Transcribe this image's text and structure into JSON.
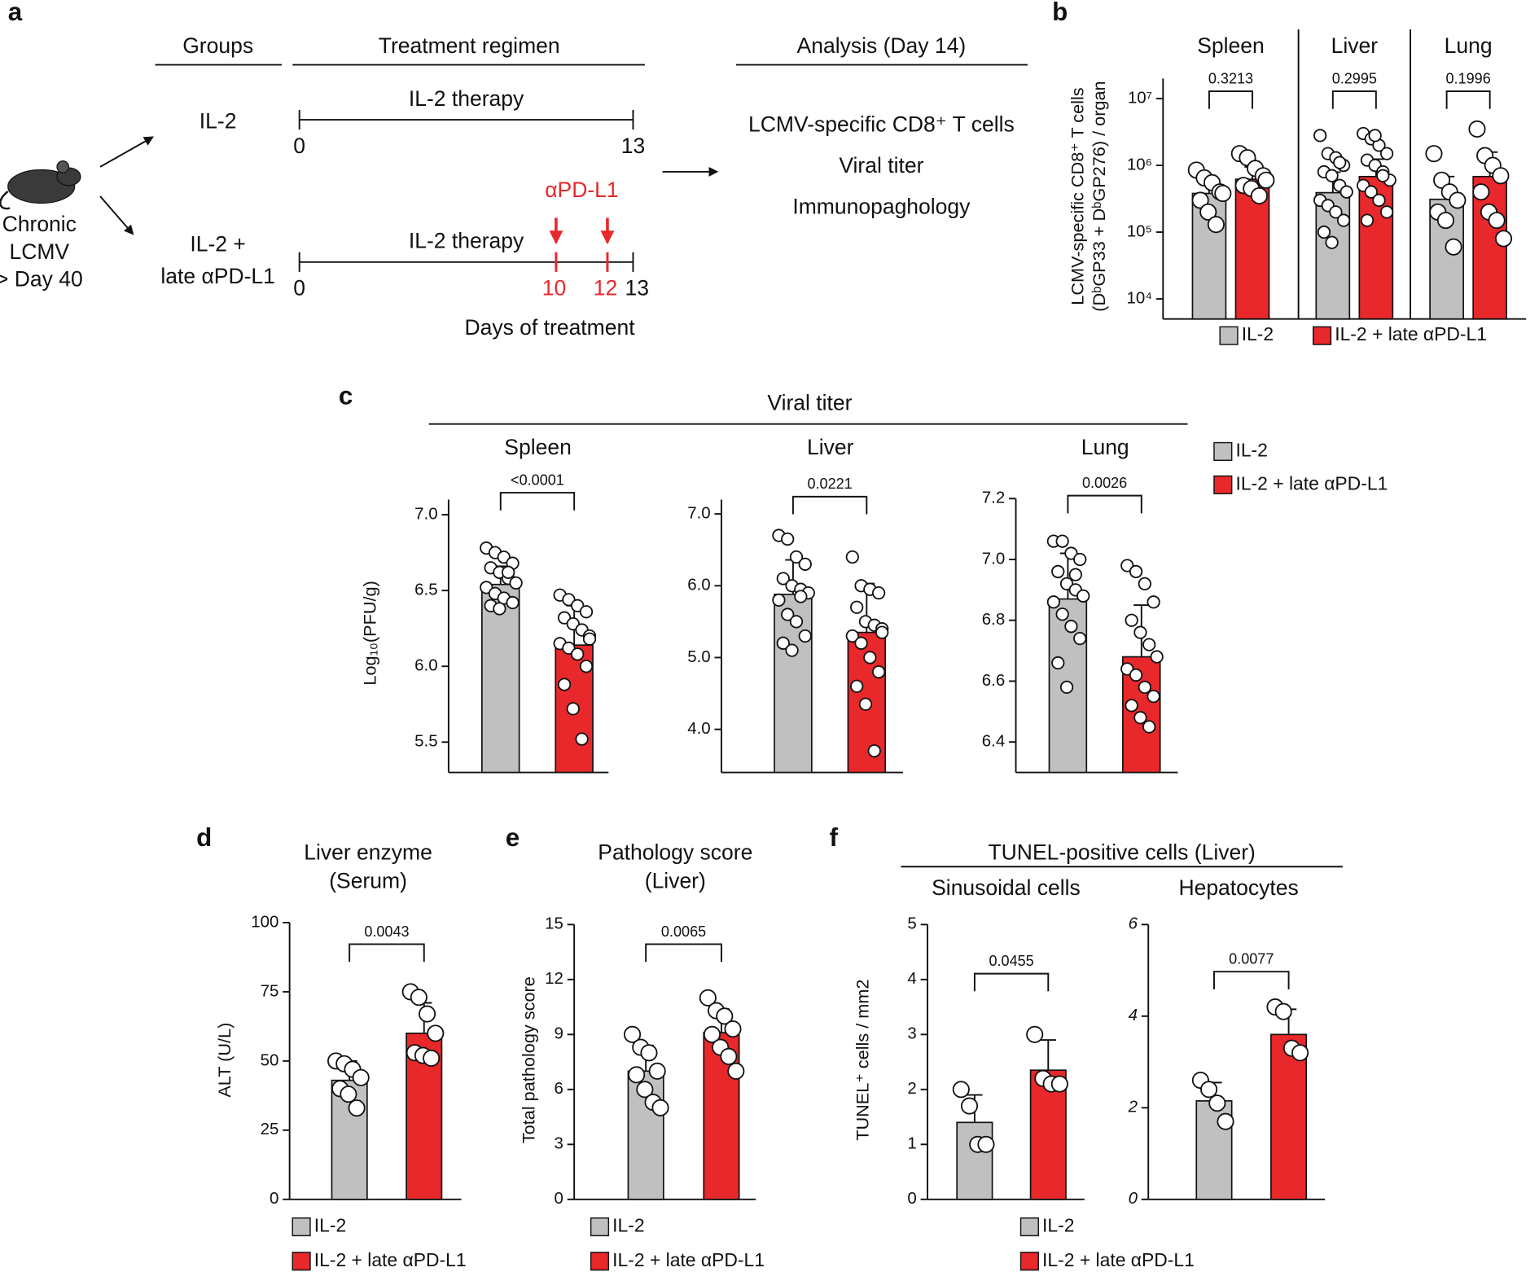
{
  "diagram": {
    "label": "a",
    "headers": [
      "Groups",
      "Treatment regimen",
      "Analysis (Day 14)"
    ],
    "start": [
      "Chronic",
      "LCMV",
      "> Day 40"
    ],
    "groups": [
      {
        "name": [
          "IL-2"
        ],
        "therapy": "IL-2 therapy",
        "days": [
          0,
          13
        ]
      },
      {
        "name": [
          "IL-2 +",
          "late αPD-L1"
        ],
        "therapy": "IL-2 therapy",
        "days": [
          0,
          13
        ],
        "doses": [
          10,
          12
        ],
        "dose_label": "αPD-L1"
      }
    ],
    "axis_label": "Days of treatment",
    "analysis": [
      "LCMV-specific CD8⁺ T cells",
      "Viral titer",
      "Immunopaghology"
    ]
  },
  "chart_data": [
    {
      "type": "bar",
      "label": "b",
      "log": true,
      "ylabel": [
        "LCMV-specific CD8⁺ T cells",
        "(DᵇGP33 + DᵇGP276) / organ"
      ],
      "ylim": [
        5000,
        20000000
      ],
      "yticks": [
        {
          "value": 10000,
          "label": "10⁴"
        },
        {
          "value": 100000,
          "label": "10⁵"
        },
        {
          "value": 1000000,
          "label": "10⁶"
        },
        {
          "value": 10000000,
          "label": "10⁷"
        }
      ],
      "series": [
        {
          "name": "IL-2",
          "color": "#c0c0c0"
        },
        {
          "name": "IL-2 + late αPD-L1",
          "color": "#e8282b"
        }
      ],
      "groups": [
        {
          "title": "Spleen",
          "pvalue": "0.3213",
          "values": [
            380000,
            620000
          ],
          "errors": [
            260000,
            330000
          ],
          "points": [
            [
              850000,
              650000,
              550000,
              400000,
              300000,
              200000,
              130000,
              380000
            ],
            [
              1500000,
              1300000,
              900000,
              700000,
              500000,
              450000,
              350000,
              600000
            ]
          ]
        },
        {
          "title": "Liver",
          "pvalue": "0.2995",
          "values": [
            390000,
            680000
          ],
          "errors": [
            400000,
            560000
          ],
          "points": [
            [
              2800000,
              1500000,
              1300000,
              1000000,
              800000,
              700000,
              500000,
              400000,
              300000,
              250000,
              200000,
              150000,
              100000,
              70000,
              1100000
            ],
            [
              3000000,
              2500000,
              2000000,
              1500000,
              1200000,
              1000000,
              800000,
              600000,
              500000,
              400000,
              300000,
              200000,
              150000,
              2800000,
              700000
            ]
          ]
        },
        {
          "title": "Lung",
          "pvalue": "0.1996",
          "values": [
            310000,
            680000
          ],
          "errors": [
            370000,
            900000
          ],
          "points": [
            [
              1500000,
              600000,
              400000,
              300000,
              200000,
              150000,
              60000
            ],
            [
              3500000,
              1400000,
              1000000,
              700000,
              400000,
              200000,
              150000,
              80000
            ]
          ]
        }
      ]
    },
    {
      "type": "bar",
      "label": "c",
      "title": "Viral titer",
      "ylabel": [
        "Log₁₀(PFU/g)"
      ],
      "series": [
        {
          "name": "IL-2",
          "color": "#c0c0c0"
        },
        {
          "name": "IL-2 + late αPD-L1",
          "color": "#e8282b"
        }
      ],
      "groups": [
        {
          "title": "Spleen",
          "pvalue": "<0.0001",
          "ylim": [
            5.3,
            7.1
          ],
          "yticks": [
            5.5,
            {
              "value": 6,
              "label": "6.0"
            },
            6.5,
            {
              "value": 7,
              "label": "7.0"
            }
          ],
          "values": [
            6.54,
            6.14
          ],
          "errors": [
            0.12,
            0.26
          ],
          "points": [
            [
              6.78,
              6.75,
              6.72,
              6.68,
              6.65,
              6.62,
              6.58,
              6.55,
              6.52,
              6.48,
              6.45,
              6.42,
              6.4,
              6.38,
              6.62
            ],
            [
              6.47,
              6.44,
              6.4,
              6.36,
              6.32,
              6.28,
              6.24,
              6.2,
              6.15,
              6.12,
              6.08,
              6.0,
              5.88,
              5.72,
              5.52,
              6.18
            ]
          ]
        },
        {
          "title": "Liver",
          "pvalue": "0.0221",
          "ylim": [
            3.4,
            7.2
          ],
          "yticks": [
            {
              "value": 4,
              "label": "4.0"
            },
            {
              "value": 5,
              "label": "5.0"
            },
            {
              "value": 6,
              "label": "6.0"
            },
            {
              "value": 7,
              "label": "7.0"
            }
          ],
          "values": [
            5.88,
            5.35
          ],
          "errors": [
            0.48,
            0.68
          ],
          "points": [
            [
              6.7,
              6.65,
              6.4,
              6.3,
              6.1,
              6.0,
              5.95,
              5.9,
              5.8,
              5.6,
              5.5,
              5.3,
              5.2,
              5.1,
              5.85
            ],
            [
              6.4,
              6.0,
              5.95,
              5.9,
              5.7,
              5.5,
              5.45,
              5.4,
              5.3,
              5.2,
              5.0,
              4.8,
              4.6,
              4.35,
              3.7,
              5.35
            ]
          ]
        },
        {
          "title": "Lung",
          "pvalue": "0.0026",
          "ylim": [
            6.3,
            7.2
          ],
          "yticks": [
            6.4,
            6.6,
            6.8,
            {
              "value": 7,
              "label": "7.0"
            },
            7.2
          ],
          "values": [
            6.87,
            6.68
          ],
          "errors": [
            0.15,
            0.17
          ],
          "points": [
            [
              7.06,
              7.06,
              7.02,
              7.0,
              6.96,
              6.92,
              6.9,
              6.88,
              6.86,
              6.82,
              6.78,
              6.74,
              6.66,
              6.58,
              6.95
            ],
            [
              6.98,
              6.96,
              6.92,
              6.86,
              6.8,
              6.76,
              6.72,
              6.68,
              6.64,
              6.62,
              6.58,
              6.55,
              6.52,
              6.48,
              6.45
            ]
          ]
        }
      ]
    },
    {
      "type": "bar",
      "label": "d",
      "title": [
        "Liver enzyme",
        "(Serum)"
      ],
      "ylabel": [
        "ALT (U/L)"
      ],
      "ylim": [
        0,
        100
      ],
      "yticks": [
        0,
        25,
        50,
        75,
        100
      ],
      "series": [
        {
          "name": "IL-2",
          "color": "#c0c0c0"
        },
        {
          "name": "IL-2 + late αPD-L1",
          "color": "#e8282b"
        }
      ],
      "groups": [
        {
          "pvalue": "0.0043",
          "values": [
            43,
            60
          ],
          "errors": [
            7,
            11
          ],
          "points": [
            [
              50,
              49,
              47,
              44,
              40,
              38,
              33
            ],
            [
              75,
              73,
              67,
              60,
              53,
              52,
              51
            ]
          ]
        }
      ]
    },
    {
      "type": "bar",
      "label": "e",
      "title": [
        "Pathology score",
        "(Liver)"
      ],
      "ylabel": [
        "Total pathology score"
      ],
      "ylim": [
        0,
        15
      ],
      "yticks": [
        0,
        3,
        6,
        9,
        12,
        15
      ],
      "series": [
        {
          "name": "IL-2",
          "color": "#c0c0c0"
        },
        {
          "name": "IL-2 + late αPD-L1",
          "color": "#e8282b"
        }
      ],
      "groups": [
        {
          "pvalue": "0.0065",
          "values": [
            7.0,
            9.1
          ],
          "errors": [
            1.4,
            1.3
          ],
          "points": [
            [
              9.0,
              8.3,
              8.0,
              7.0,
              6.8,
              6.0,
              5.3,
              5.0
            ],
            [
              11.0,
              10.3,
              10.0,
              9.3,
              9.0,
              8.3,
              7.8,
              7.0
            ]
          ]
        }
      ]
    },
    {
      "type": "bar",
      "label": "f",
      "title": "TUNEL-positive cells (Liver)",
      "ylabel": [
        "TUNEL⁺ cells / mm2"
      ],
      "series": [
        {
          "name": "IL-2",
          "color": "#c0c0c0"
        },
        {
          "name": "IL-2 + late αPD-L1",
          "color": "#e8282b"
        }
      ],
      "groups": [
        {
          "title": "Sinusoidal cells",
          "pvalue": "0.0455",
          "ylim": [
            0,
            5
          ],
          "yticks": [
            0,
            1,
            2,
            3,
            4,
            5
          ],
          "values": [
            1.4,
            2.35
          ],
          "errors": [
            0.5,
            0.55
          ],
          "points": [
            [
              2.0,
              1.7,
              1.0,
              1.0
            ],
            [
              3.0,
              2.2,
              2.1,
              2.1
            ]
          ]
        },
        {
          "title": "Hepatocytes",
          "pvalue": "0.0077",
          "ylim": [
            0,
            6
          ],
          "yticks": [
            0,
            2,
            4,
            6
          ],
          "values": [
            2.15,
            3.6
          ],
          "errors": [
            0.4,
            0.55
          ],
          "points": [
            [
              2.6,
              2.4,
              2.1,
              1.7
            ],
            [
              4.2,
              4.1,
              3.3,
              3.2
            ]
          ]
        }
      ]
    }
  ]
}
